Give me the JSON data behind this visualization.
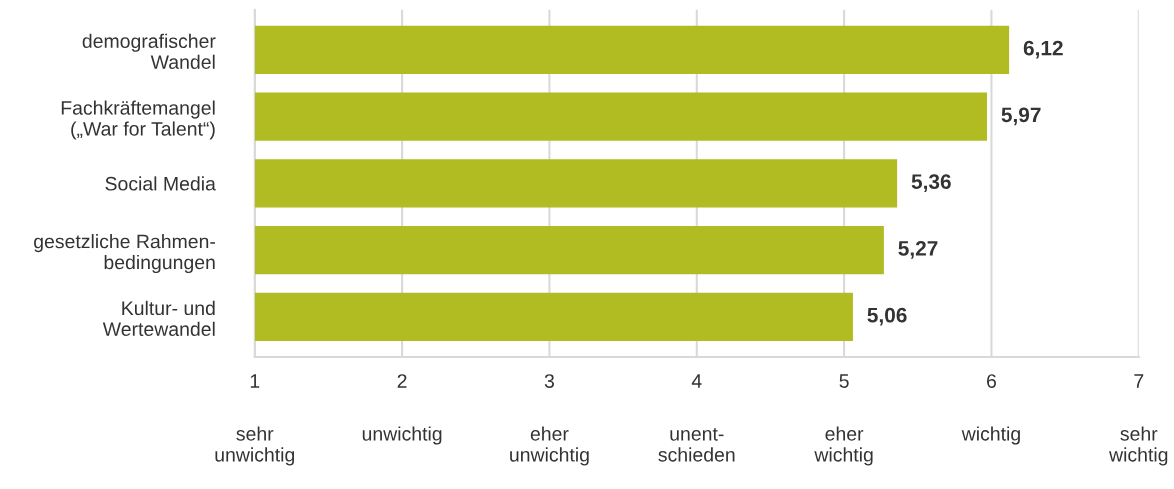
{
  "chart_data": {
    "type": "bar",
    "orientation": "horizontal",
    "categories": [
      "demografischer\nWandel",
      "Fachkräftemangel\n(„War for Talent“)",
      "Social Media",
      "gesetzliche Rahmen-\nbedingungen",
      "Kultur- und\nWertewandel"
    ],
    "values": [
      6.12,
      5.97,
      5.36,
      5.27,
      5.06
    ],
    "value_labels": [
      "6,12",
      "5,97",
      "5,36",
      "5,27",
      "5,06"
    ],
    "color": "#b0bc22",
    "xlim": [
      1,
      7
    ],
    "xticks": [
      1,
      2,
      3,
      4,
      5,
      6,
      7
    ],
    "annotations": [
      "sehr\nunwichtig",
      "unwichtig",
      "eher\nunwichtig",
      "unent-\nschieden",
      "eher\nwichtig",
      "wichtig",
      "sehr\nwichtig"
    ],
    "grid": "x"
  }
}
